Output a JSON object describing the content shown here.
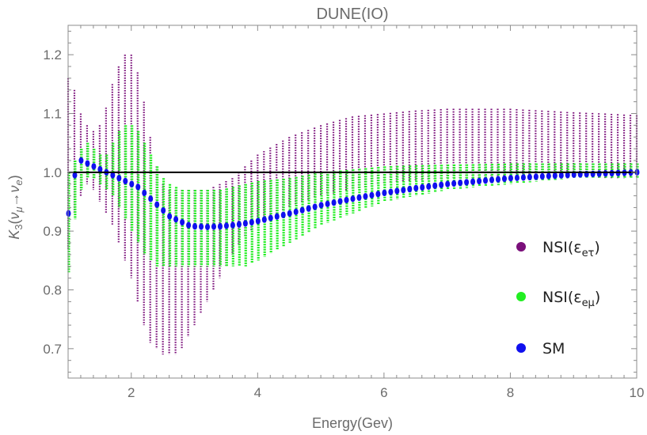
{
  "chart_data": {
    "type": "scatter",
    "title": "DUNE(IO)",
    "xlabel": "Energy(Gev)",
    "ylabel": "K3(νμ→νe)",
    "xlim": [
      1.0,
      10.0
    ],
    "ylim": [
      0.65,
      1.25
    ],
    "x_ticks": [
      "2",
      "4",
      "6",
      "8",
      "10"
    ],
    "y_ticks": [
      "0.7",
      "0.8",
      "0.9",
      "1.0",
      "1.1",
      "1.2"
    ],
    "reference_line": 1.0,
    "grid": false,
    "legend_position": "bottom-right",
    "series": [
      {
        "name": "NSI(εeτ)",
        "color": "#7a0f7a",
        "style": "vertical bands",
        "x": [
          1.0,
          1.1,
          1.2,
          1.3,
          1.4,
          1.5,
          1.6,
          1.7,
          1.8,
          1.9,
          2.0,
          2.1,
          2.2,
          2.3,
          2.4,
          2.5,
          2.6,
          2.7,
          2.8,
          2.9,
          3.0,
          3.2,
          3.4,
          3.6,
          3.8,
          4.0,
          4.5,
          5.0,
          5.5,
          6.0,
          6.5,
          7.0,
          7.5,
          8.0,
          8.5,
          9.0,
          9.5,
          10.0
        ],
        "lo": [
          0.87,
          0.93,
          0.96,
          0.98,
          0.97,
          0.95,
          0.93,
          0.91,
          0.88,
          0.85,
          0.82,
          0.78,
          0.74,
          0.71,
          0.7,
          0.69,
          0.69,
          0.69,
          0.7,
          0.72,
          0.74,
          0.78,
          0.82,
          0.86,
          0.89,
          0.91,
          0.94,
          0.96,
          0.97,
          0.98,
          0.985,
          0.99,
          0.99,
          0.99,
          0.99,
          0.99,
          0.99,
          0.99
        ],
        "hi": [
          1.16,
          1.14,
          1.1,
          1.08,
          1.07,
          1.08,
          1.11,
          1.15,
          1.18,
          1.2,
          1.2,
          1.17,
          1.12,
          1.06,
          1.01,
          0.98,
          0.97,
          0.97,
          0.97,
          0.97,
          0.97,
          0.97,
          0.98,
          0.99,
          1.01,
          1.03,
          1.06,
          1.08,
          1.095,
          1.1,
          1.105,
          1.108,
          1.108,
          1.108,
          1.105,
          1.102,
          1.1,
          1.097
        ]
      },
      {
        "name": "NSI(εeμ)",
        "color": "#22ee22",
        "style": "vertical bands",
        "x": [
          1.0,
          1.1,
          1.2,
          1.3,
          1.4,
          1.5,
          1.6,
          1.7,
          1.8,
          1.9,
          2.0,
          2.1,
          2.2,
          2.3,
          2.4,
          2.5,
          2.6,
          2.7,
          2.8,
          2.9,
          3.0,
          3.2,
          3.4,
          3.6,
          3.8,
          4.0,
          4.5,
          5.0,
          5.5,
          6.0,
          6.5,
          7.0,
          7.5,
          8.0,
          8.5,
          9.0,
          9.5,
          10.0
        ],
        "lo": [
          0.83,
          0.92,
          0.97,
          0.99,
          0.99,
          0.98,
          0.97,
          0.96,
          0.94,
          0.92,
          0.9,
          0.88,
          0.86,
          0.85,
          0.84,
          0.84,
          0.84,
          0.84,
          0.84,
          0.84,
          0.84,
          0.84,
          0.84,
          0.84,
          0.84,
          0.85,
          0.88,
          0.91,
          0.93,
          0.95,
          0.96,
          0.97,
          0.975,
          0.98,
          0.985,
          0.99,
          0.99,
          0.99
        ],
        "hi": [
          1.0,
          1.02,
          1.04,
          1.05,
          1.04,
          1.03,
          1.03,
          1.05,
          1.07,
          1.08,
          1.08,
          1.07,
          1.05,
          1.03,
          1.01,
          0.99,
          0.98,
          0.975,
          0.97,
          0.97,
          0.97,
          0.97,
          0.97,
          0.975,
          0.98,
          0.985,
          0.99,
          1.0,
          1.005,
          1.01,
          1.012,
          1.013,
          1.014,
          1.015,
          1.015,
          1.015,
          1.015,
          1.015
        ]
      },
      {
        "name": "SM",
        "color": "#1010ee",
        "style": "points",
        "x": [
          1.0,
          1.1,
          1.2,
          1.3,
          1.4,
          1.5,
          1.6,
          1.7,
          1.8,
          1.9,
          2.0,
          2.1,
          2.2,
          2.3,
          2.4,
          2.5,
          2.6,
          2.7,
          2.8,
          2.9,
          3.0,
          3.2,
          3.4,
          3.6,
          3.8,
          4.0,
          4.5,
          5.0,
          5.5,
          6.0,
          6.5,
          7.0,
          7.5,
          8.0,
          8.5,
          9.0,
          9.5,
          10.0
        ],
        "y": [
          0.93,
          0.995,
          1.02,
          1.015,
          1.01,
          1.005,
          1.0,
          0.995,
          0.99,
          0.985,
          0.98,
          0.975,
          0.965,
          0.955,
          0.945,
          0.935,
          0.925,
          0.92,
          0.915,
          0.91,
          0.908,
          0.907,
          0.908,
          0.91,
          0.913,
          0.917,
          0.93,
          0.944,
          0.955,
          0.965,
          0.973,
          0.98,
          0.985,
          0.99,
          0.993,
          0.996,
          0.998,
          1.0
        ]
      }
    ]
  }
}
